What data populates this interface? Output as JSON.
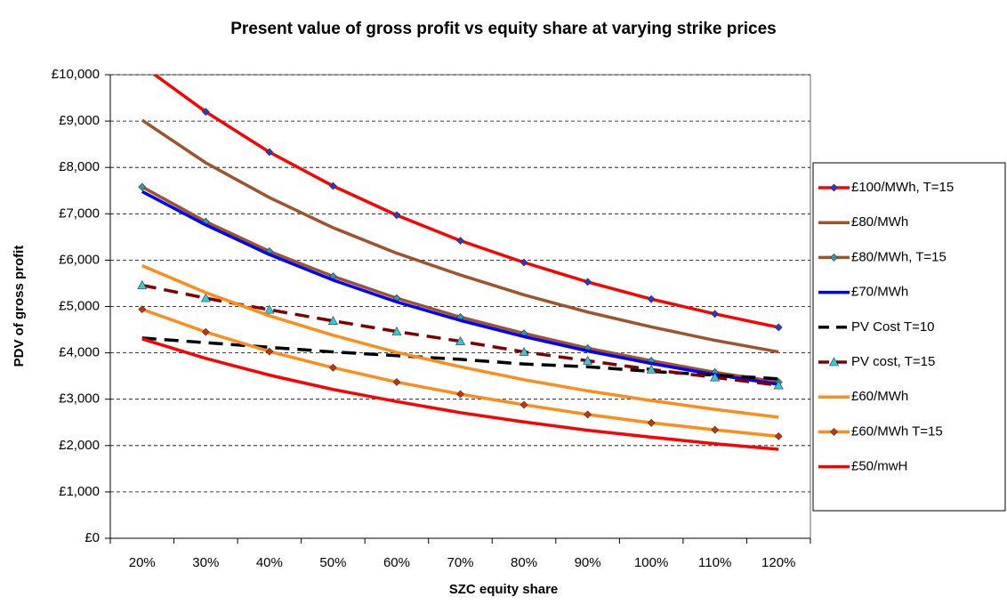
{
  "chart_data": {
    "type": "line",
    "title": "Present value of gross profit vs equity share at varying strike prices",
    "x_label": "SZC equity share",
    "y_label": "PDV of gross profit",
    "categories": [
      "20%",
      "30%",
      "40%",
      "50%",
      "60%",
      "70%",
      "80%",
      "90%",
      "100%",
      "110%",
      "120%"
    ],
    "ylim": [
      0,
      10000
    ],
    "yticks": [
      {
        "value": 0,
        "label": "£0"
      },
      {
        "value": 1000,
        "label": "£1,000"
      },
      {
        "value": 2000,
        "label": "£2,000"
      },
      {
        "value": 3000,
        "label": "£3,000"
      },
      {
        "value": 4000,
        "label": "£4,000"
      },
      {
        "value": 5000,
        "label": "£5,000"
      },
      {
        "value": 6000,
        "label": "£6,000"
      },
      {
        "value": 7000,
        "label": "£7,000"
      },
      {
        "value": 8000,
        "label": "£8,000"
      },
      {
        "value": 9000,
        "label": "£9,000"
      },
      {
        "value": 10000,
        "label": "£10,000"
      }
    ],
    "grid": true,
    "legend": "right",
    "series": [
      {
        "name": "£100/MWh, T=15",
        "color": "#ff0000",
        "marker": "diamond",
        "marker_color": "#3333cc",
        "dash": false,
        "values": [
          10200,
          9200,
          8330,
          7600,
          6970,
          6420,
          5950,
          5530,
          5160,
          4840,
          4550
        ]
      },
      {
        "name": "£80/MWh",
        "color": "#a0522d",
        "marker": "none",
        "dash": false,
        "values": [
          9020,
          8100,
          7350,
          6700,
          6150,
          5680,
          5250,
          4880,
          4560,
          4270,
          4020
        ]
      },
      {
        "name": "£80/MWh, T=15",
        "color": "#a0522d",
        "marker": "diamond",
        "marker_color": "#339999",
        "dash": false,
        "values": [
          7580,
          6830,
          6190,
          5650,
          5180,
          4770,
          4420,
          4100,
          3830,
          3580,
          3370
        ]
      },
      {
        "name": "£70/MWh",
        "color": "#0000ff",
        "marker": "none",
        "dash": false,
        "values": [
          7480,
          6760,
          6120,
          5570,
          5100,
          4700,
          4350,
          4040,
          3770,
          3530,
          3320
        ]
      },
      {
        "name": "PV Cost T=10",
        "color": "#000000",
        "marker": "none",
        "dash": true,
        "values": [
          4320,
          4220,
          4120,
          4020,
          3940,
          3860,
          3760,
          3700,
          3600,
          3520,
          3440
        ]
      },
      {
        "name": "PV cost, T=15",
        "color": "#800000",
        "marker": "triangle",
        "marker_color": "#33cccc",
        "dash": true,
        "values": [
          5460,
          5180,
          4930,
          4690,
          4460,
          4250,
          4020,
          3830,
          3640,
          3470,
          3300
        ]
      },
      {
        "name": "£60/MWh",
        "color": "#ff8c1a",
        "marker": "none",
        "dash": false,
        "values": [
          5880,
          5300,
          4800,
          4380,
          4010,
          3700,
          3420,
          3180,
          2970,
          2780,
          2610
        ]
      },
      {
        "name": "£60/MWh T=15",
        "color": "#ff8c1a",
        "marker": "diamond",
        "marker_color": "#cc3300",
        "dash": false,
        "values": [
          4940,
          4450,
          4030,
          3680,
          3370,
          3110,
          2880,
          2670,
          2490,
          2340,
          2200
        ]
      },
      {
        "name": "£50/mwH",
        "color": "#ff0000",
        "marker": "none",
        "dash": false,
        "values": [
          4300,
          3880,
          3520,
          3210,
          2950,
          2710,
          2510,
          2330,
          2180,
          2040,
          1920
        ]
      }
    ]
  }
}
